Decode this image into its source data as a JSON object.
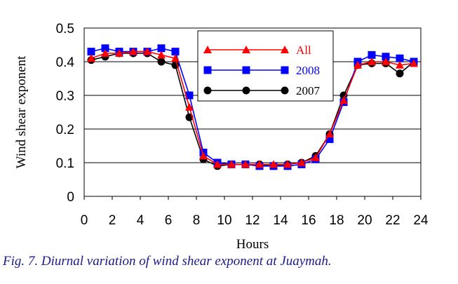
{
  "chart_data": {
    "type": "line",
    "title": "",
    "xlabel": "Hours",
    "ylabel": "Wind shear exponent",
    "xlim": [
      0,
      24
    ],
    "ylim": [
      0,
      0.5
    ],
    "xticks": [
      "0",
      "2",
      "4",
      "6",
      "8",
      "10",
      "12",
      "14",
      "16",
      "18",
      "20",
      "22",
      "24"
    ],
    "yticks": [
      "0",
      "0.1",
      "0.2",
      "0.3",
      "0.4",
      "0.5"
    ],
    "grid": true,
    "legend_position": "top-center",
    "x": [
      0.5,
      1.5,
      2.5,
      3.5,
      4.5,
      5.5,
      6.5,
      7.5,
      8.5,
      9.5,
      10.5,
      11.5,
      12.5,
      13.5,
      14.5,
      15.5,
      16.5,
      17.5,
      18.5,
      19.5,
      20.5,
      21.5,
      22.5,
      23.5
    ],
    "series": [
      {
        "name": "All",
        "color": "#ff0000",
        "marker": "triangle",
        "values": [
          0.41,
          0.425,
          0.425,
          0.43,
          0.43,
          0.42,
          0.41,
          0.265,
          0.12,
          0.095,
          0.095,
          0.095,
          0.095,
          0.095,
          0.095,
          0.1,
          0.115,
          0.185,
          0.285,
          0.39,
          0.4,
          0.4,
          0.39,
          0.395
        ]
      },
      {
        "name": "2008",
        "color": "#0000ff",
        "marker": "square",
        "values": [
          0.43,
          0.44,
          0.43,
          0.43,
          0.43,
          0.44,
          0.43,
          0.3,
          0.13,
          0.1,
          0.095,
          0.095,
          0.09,
          0.09,
          0.09,
          0.095,
          0.11,
          0.17,
          0.28,
          0.4,
          0.42,
          0.415,
          0.41,
          0.4
        ]
      },
      {
        "name": "2007",
        "color": "#000000",
        "marker": "circle",
        "values": [
          0.405,
          0.415,
          0.425,
          0.425,
          0.425,
          0.4,
          0.39,
          0.235,
          0.11,
          0.09,
          0.095,
          0.095,
          0.095,
          0.09,
          0.095,
          0.1,
          0.12,
          0.185,
          0.3,
          0.39,
          0.395,
          0.395,
          0.365,
          0.4
        ]
      }
    ],
    "caption": "Fig. 7. Diurnal variation of wind shear exponent at Juaymah."
  }
}
